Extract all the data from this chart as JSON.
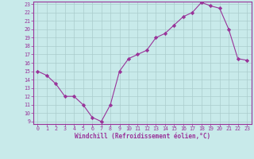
{
  "x": [
    0,
    1,
    2,
    3,
    4,
    5,
    6,
    7,
    8,
    9,
    10,
    11,
    12,
    13,
    14,
    15,
    16,
    17,
    18,
    19,
    20,
    21,
    22,
    23
  ],
  "y": [
    15.0,
    14.5,
    13.5,
    12.0,
    12.0,
    11.0,
    9.5,
    9.0,
    11.0,
    15.0,
    16.5,
    17.0,
    17.5,
    19.0,
    19.5,
    20.5,
    21.5,
    22.0,
    23.2,
    22.8,
    22.5,
    20.0,
    16.5,
    16.3
  ],
  "line_color": "#993399",
  "marker": "D",
  "marker_size": 2.2,
  "bg_color": "#c8eaea",
  "grid_color": "#aacccc",
  "xlabel": "Windchill (Refroidissement éolien,°C)",
  "xlabel_color": "#993399",
  "tick_color": "#993399",
  "spine_color": "#993399",
  "ylim": [
    9,
    23
  ],
  "xlim": [
    0,
    23
  ],
  "yticks": [
    9,
    10,
    11,
    12,
    13,
    14,
    15,
    16,
    17,
    18,
    19,
    20,
    21,
    22,
    23
  ],
  "xticks": [
    0,
    1,
    2,
    3,
    4,
    5,
    6,
    7,
    8,
    9,
    10,
    11,
    12,
    13,
    14,
    15,
    16,
    17,
    18,
    19,
    20,
    21,
    22,
    23
  ]
}
